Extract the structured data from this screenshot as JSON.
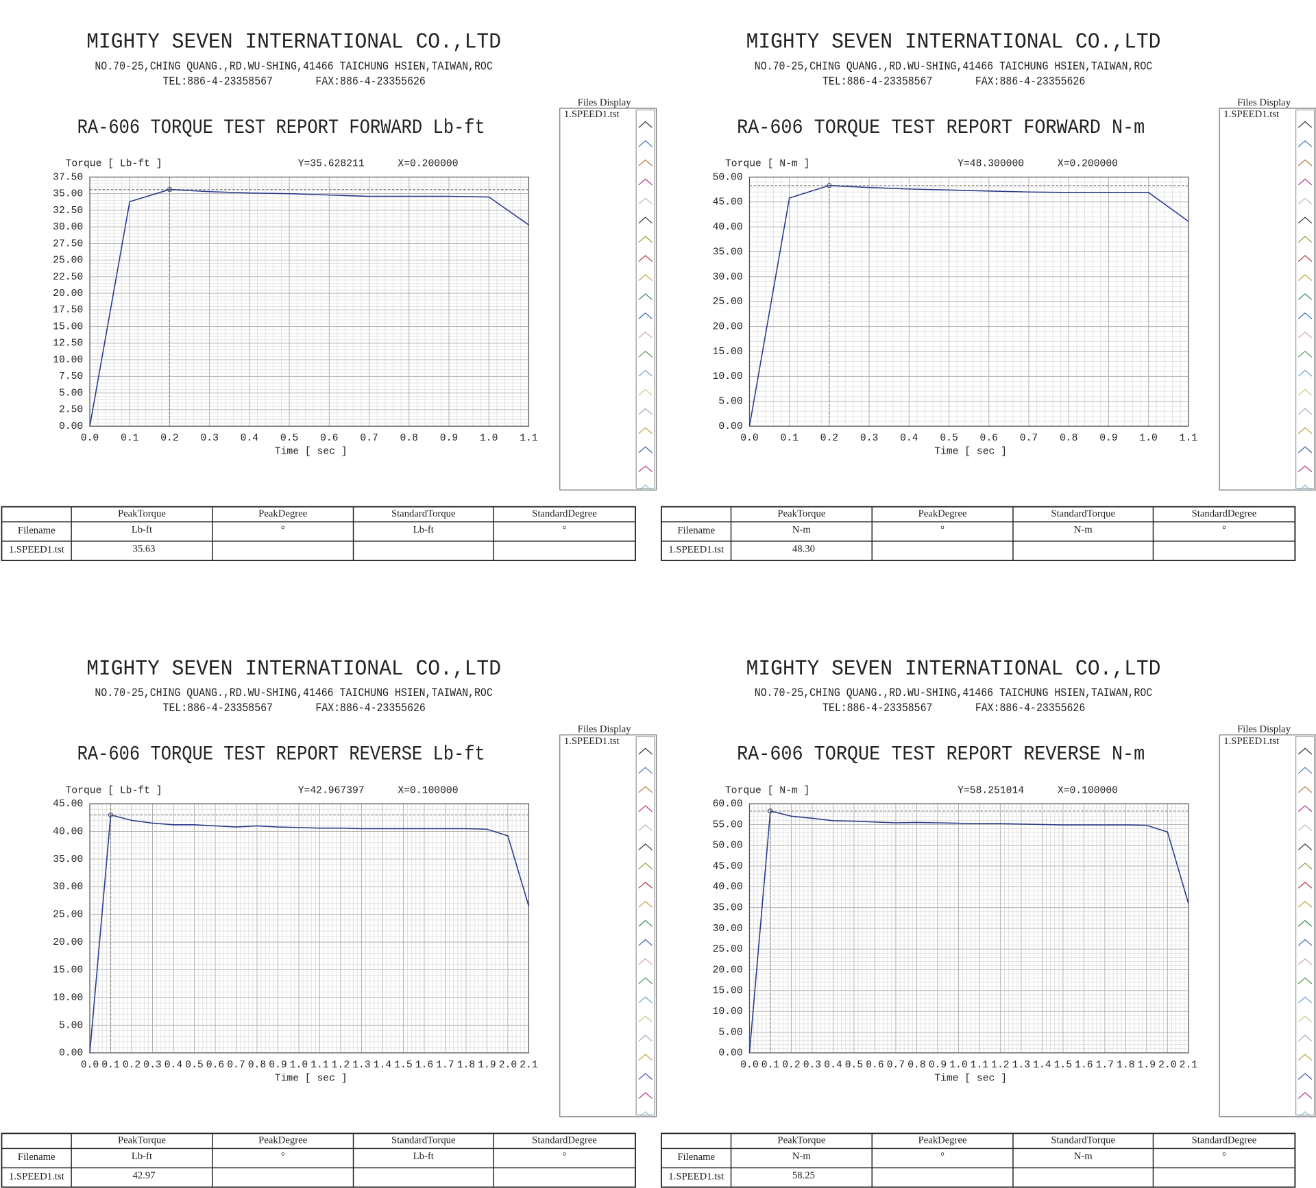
{
  "chart_data": [
    {
      "type": "line",
      "company": "MIGHTY SEVEN INTERNATIONAL CO.,LTD",
      "address": "NO.70-25,CHING QUANG.,RD.WU-SHING,41466 TAICHUNG HSIEN,TAIWAN,ROC",
      "tel": "TEL:886-4-23358567",
      "fax": "FAX:886-4-23355626",
      "title": "RA-606 TORQUE TEST REPORT FORWARD Lb-ft",
      "ylabel": "Torque [ Lb-ft ]",
      "xlabel": "Time [ sec ]",
      "cursor": {
        "x": {
          "value": 0.2,
          "label": "X=0.200000"
        },
        "y": {
          "value": 35.628211,
          "label": "Y=35.628211"
        }
      },
      "x": [
        0,
        0.1,
        0.2,
        0.3,
        0.4,
        0.5,
        0.6,
        0.7,
        0.8,
        0.9,
        1.0,
        1.1
      ],
      "series": [
        {
          "name": "1.SPEED1.tst",
          "color": "#2b3a8c",
          "values": [
            0,
            33.8,
            35.63,
            35.3,
            35.1,
            35.0,
            34.8,
            34.6,
            34.6,
            34.6,
            34.5,
            30.3
          ]
        }
      ],
      "xlim": [
        0,
        1.1
      ],
      "xticks": [
        {
          "value": 0,
          "label": "0.0"
        },
        0.1,
        0.2,
        0.3,
        0.4,
        0.5,
        0.6,
        0.7,
        0.8,
        0.9,
        {
          "value": 1,
          "label": "1.0"
        },
        1.1
      ],
      "ylim": [
        0,
        37.5
      ],
      "yticks": [
        {
          "value": 0,
          "label": "0.00"
        },
        {
          "value": 2.5,
          "label": "2.50"
        },
        {
          "value": 5,
          "label": "5.00"
        },
        {
          "value": 7.5,
          "label": "7.50"
        },
        {
          "value": 10,
          "label": "10.00"
        },
        {
          "value": 12.5,
          "label": "12.50"
        },
        {
          "value": 15,
          "label": "15.00"
        },
        {
          "value": 17.5,
          "label": "17.50"
        },
        {
          "value": 20,
          "label": "20.00"
        },
        {
          "value": 22.5,
          "label": "22.50"
        },
        {
          "value": 25,
          "label": "25.00"
        },
        {
          "value": 27.5,
          "label": "27.50"
        },
        {
          "value": 30,
          "label": "30.00"
        },
        {
          "value": 32.5,
          "label": "32.50"
        },
        {
          "value": 35,
          "label": "35.00"
        },
        {
          "value": 37.5,
          "label": "37.50"
        }
      ],
      "grid": true,
      "files_display": "Files Display",
      "table": {
        "columns": [
          "PeakTorque",
          "PeakDegree",
          "StandardTorque",
          "StandardDegree"
        ],
        "row_header": "Filename",
        "units": [
          "Lb-ft",
          "°",
          "Lb-ft",
          "°"
        ],
        "file": "1.SPEED1.tst",
        "peak_torque": "35.63"
      }
    },
    {
      "type": "line",
      "company": "MIGHTY SEVEN INTERNATIONAL CO.,LTD",
      "address": "NO.70-25,CHING QUANG.,RD.WU-SHING,41466 TAICHUNG HSIEN,TAIWAN,ROC",
      "tel": "TEL:886-4-23358567",
      "fax": "FAX:886-4-23355626",
      "title": "RA-606 TORQUE TEST REPORT FORWARD N-m",
      "ylabel": "Torque [ N-m  ]",
      "xlabel": "Time [ sec ]",
      "cursor": {
        "x": {
          "value": 0.2,
          "label": "X=0.200000"
        },
        "y": {
          "value": 48.3,
          "label": "Y=48.300000"
        }
      },
      "x": [
        0,
        0.1,
        0.2,
        0.3,
        0.4,
        0.5,
        0.6,
        0.7,
        0.8,
        0.9,
        1.0,
        1.1
      ],
      "series": [
        {
          "name": "1.SPEED1.tst",
          "color": "#2b3a8c",
          "values": [
            0,
            45.8,
            48.3,
            47.9,
            47.6,
            47.4,
            47.2,
            47.0,
            46.9,
            46.9,
            46.9,
            41.1
          ]
        }
      ],
      "xlim": [
        0,
        1.1
      ],
      "xticks": [
        {
          "value": 0,
          "label": "0.0"
        },
        0.1,
        0.2,
        0.3,
        0.4,
        0.5,
        0.6,
        0.7,
        0.8,
        0.9,
        {
          "value": 1,
          "label": "1.0"
        },
        1.1
      ],
      "ylim": [
        0,
        50
      ],
      "yticks": [
        {
          "value": 0,
          "label": "0.00"
        },
        {
          "value": 5,
          "label": "5.00"
        },
        {
          "value": 10,
          "label": "10.00"
        },
        {
          "value": 15,
          "label": "15.00"
        },
        {
          "value": 20,
          "label": "20.00"
        },
        {
          "value": 25,
          "label": "25.00"
        },
        {
          "value": 30,
          "label": "30.00"
        },
        {
          "value": 35,
          "label": "35.00"
        },
        {
          "value": 40,
          "label": "40.00"
        },
        {
          "value": 45,
          "label": "45.00"
        },
        {
          "value": 50,
          "label": "50.00"
        }
      ],
      "grid": true,
      "files_display": "Files Display",
      "table": {
        "columns": [
          "PeakTorque",
          "PeakDegree",
          "StandardTorque",
          "StandardDegree"
        ],
        "row_header": "Filename",
        "units": [
          "N-m",
          "°",
          "N-m",
          "°"
        ],
        "file": "1.SPEED1.tst",
        "peak_torque": "48.30"
      }
    },
    {
      "type": "line",
      "company": "MIGHTY SEVEN INTERNATIONAL CO.,LTD",
      "address": "NO.70-25,CHING QUANG.,RD.WU-SHING,41466 TAICHUNG HSIEN,TAIWAN,ROC",
      "tel": "TEL:886-4-23358567",
      "fax": "FAX:886-4-23355626",
      "title": "RA-606 TORQUE TEST REPORT REVERSE Lb-ft",
      "ylabel": "Torque [ Lb-ft ]",
      "xlabel": "Time [ sec ]",
      "cursor": {
        "x": {
          "value": 0.1,
          "label": "X=0.100000"
        },
        "y": {
          "value": 42.967397,
          "label": "Y=42.967397"
        }
      },
      "x": [
        0,
        0.1,
        0.2,
        0.3,
        0.4,
        0.5,
        0.6,
        0.7,
        0.8,
        0.9,
        1.0,
        1.1,
        1.2,
        1.3,
        1.4,
        1.5,
        1.6,
        1.7,
        1.8,
        1.9,
        2.0,
        2.1
      ],
      "series": [
        {
          "name": "1.SPEED1.tst",
          "color": "#2b3a8c",
          "values": [
            0,
            42.97,
            42.0,
            41.5,
            41.2,
            41.2,
            41.0,
            40.8,
            41.0,
            40.8,
            40.7,
            40.6,
            40.6,
            40.5,
            40.5,
            40.5,
            40.5,
            40.5,
            40.5,
            40.4,
            39.2,
            26.5
          ]
        }
      ],
      "xlim": [
        0,
        2.1
      ],
      "xticks": [
        {
          "value": 0,
          "label": "0.0"
        },
        0.1,
        0.2,
        0.3,
        0.4,
        0.5,
        0.6,
        0.7,
        0.8,
        0.9,
        {
          "value": 1,
          "label": "1.0"
        },
        1.1,
        1.2,
        1.3,
        1.4,
        1.5,
        1.6,
        1.7,
        1.8,
        1.9,
        {
          "value": 2,
          "label": "2.0"
        },
        2.1
      ],
      "ylim": [
        0,
        45
      ],
      "yticks": [
        {
          "value": 0,
          "label": "0.00"
        },
        {
          "value": 5,
          "label": "5.00"
        },
        {
          "value": 10,
          "label": "10.00"
        },
        {
          "value": 15,
          "label": "15.00"
        },
        {
          "value": 20,
          "label": "20.00"
        },
        {
          "value": 25,
          "label": "25.00"
        },
        {
          "value": 30,
          "label": "30.00"
        },
        {
          "value": 35,
          "label": "35.00"
        },
        {
          "value": 40,
          "label": "40.00"
        },
        {
          "value": 45,
          "label": "45.00"
        }
      ],
      "grid": true,
      "files_display": "Files Display",
      "table": {
        "columns": [
          "PeakTorque",
          "PeakDegree",
          "StandardTorque",
          "StandardDegree"
        ],
        "row_header": "Filename",
        "units": [
          "Lb-ft",
          "°",
          "Lb-ft",
          "°"
        ],
        "file": "1.SPEED1.tst",
        "peak_torque": "42.97"
      }
    },
    {
      "type": "line",
      "company": "MIGHTY SEVEN INTERNATIONAL CO.,LTD",
      "address": "NO.70-25,CHING QUANG.,RD.WU-SHING,41466 TAICHUNG HSIEN,TAIWAN,ROC",
      "tel": "TEL:886-4-23358567",
      "fax": "FAX:886-4-23355626",
      "title": "RA-606 TORQUE TEST REPORT REVERSE N-m",
      "ylabel": "Torque [ N-m  ]",
      "xlabel": "Time [ sec ]",
      "cursor": {
        "x": {
          "value": 0.1,
          "label": "X=0.100000"
        },
        "y": {
          "value": 58.251014,
          "label": "Y=58.251014"
        }
      },
      "x": [
        0,
        0.1,
        0.2,
        0.3,
        0.4,
        0.5,
        0.6,
        0.7,
        0.8,
        0.9,
        1.0,
        1.1,
        1.2,
        1.3,
        1.4,
        1.5,
        1.6,
        1.7,
        1.8,
        1.9,
        2.0,
        2.1
      ],
      "series": [
        {
          "name": "1.SPEED1.tst",
          "color": "#2b3a8c",
          "values": [
            0,
            58.25,
            57.0,
            56.5,
            55.9,
            55.8,
            55.6,
            55.4,
            55.5,
            55.4,
            55.3,
            55.2,
            55.2,
            55.1,
            55.0,
            54.9,
            54.9,
            54.9,
            54.9,
            54.8,
            53.2,
            36.0
          ]
        }
      ],
      "xlim": [
        0,
        2.1
      ],
      "xticks": [
        {
          "value": 0,
          "label": "0.0"
        },
        0.1,
        0.2,
        0.3,
        0.4,
        0.5,
        0.6,
        0.7,
        0.8,
        0.9,
        {
          "value": 1,
          "label": "1.0"
        },
        1.1,
        1.2,
        1.3,
        1.4,
        1.5,
        1.6,
        1.7,
        1.8,
        1.9,
        {
          "value": 2,
          "label": "2.0"
        },
        2.1
      ],
      "ylim": [
        0,
        60
      ],
      "yticks": [
        {
          "value": 0,
          "label": "0.00"
        },
        {
          "value": 5,
          "label": "5.00"
        },
        {
          "value": 10,
          "label": "10.00"
        },
        {
          "value": 15,
          "label": "15.00"
        },
        {
          "value": 20,
          "label": "20.00"
        },
        {
          "value": 25,
          "label": "25.00"
        },
        {
          "value": 30,
          "label": "30.00"
        },
        {
          "value": 35,
          "label": "35.00"
        },
        {
          "value": 40,
          "label": "40.00"
        },
        {
          "value": 45,
          "label": "45.00"
        },
        {
          "value": 50,
          "label": "50.00"
        },
        {
          "value": 55,
          "label": "55.00"
        },
        {
          "value": 60,
          "label": "60.00"
        }
      ],
      "grid": true,
      "files_display": "Files Display",
      "table": {
        "columns": [
          "PeakTorque",
          "PeakDegree",
          "StandardTorque",
          "StandardDegree"
        ],
        "row_header": "Filename",
        "units": [
          "N-m",
          "°",
          "N-m",
          "°"
        ],
        "file": "1.SPEED1.tst",
        "peak_torque": "58.25"
      }
    }
  ]
}
